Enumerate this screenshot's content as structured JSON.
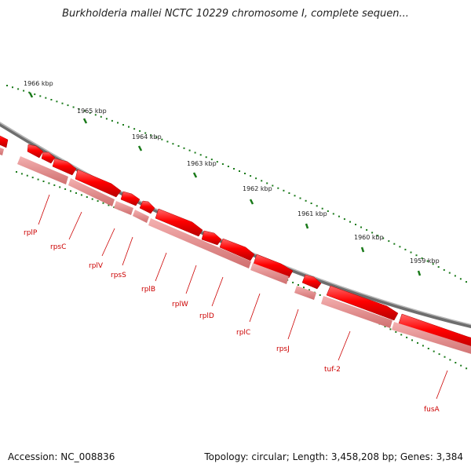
{
  "title": "Burkholderia mallei NCTC 10229 chromosome I, complete sequen...",
  "footer": {
    "accession": "Accession: NC_008836",
    "summary": "Topology: circular; Length: 3,458,208 bp; Genes: 3,384"
  },
  "kbp_ticks": [
    "1966 kbp",
    "1965 kbp",
    "1964 kbp",
    "1963 kbp",
    "1962 kbp",
    "1961 kbp",
    "1960 kbp",
    "1959 kbp"
  ],
  "genes": [
    "rplP",
    "rpsC",
    "rplV",
    "rpsS",
    "rplB",
    "rplW",
    "rplD",
    "rplC",
    "rpsJ",
    "tuf-2",
    "fusA"
  ],
  "colors": {
    "gene_fill": "#ff0000",
    "gene_shadow": "#e08a8a",
    "backbone": "#808080",
    "tick": "#1a7a1a",
    "label": "#cc0000"
  }
}
